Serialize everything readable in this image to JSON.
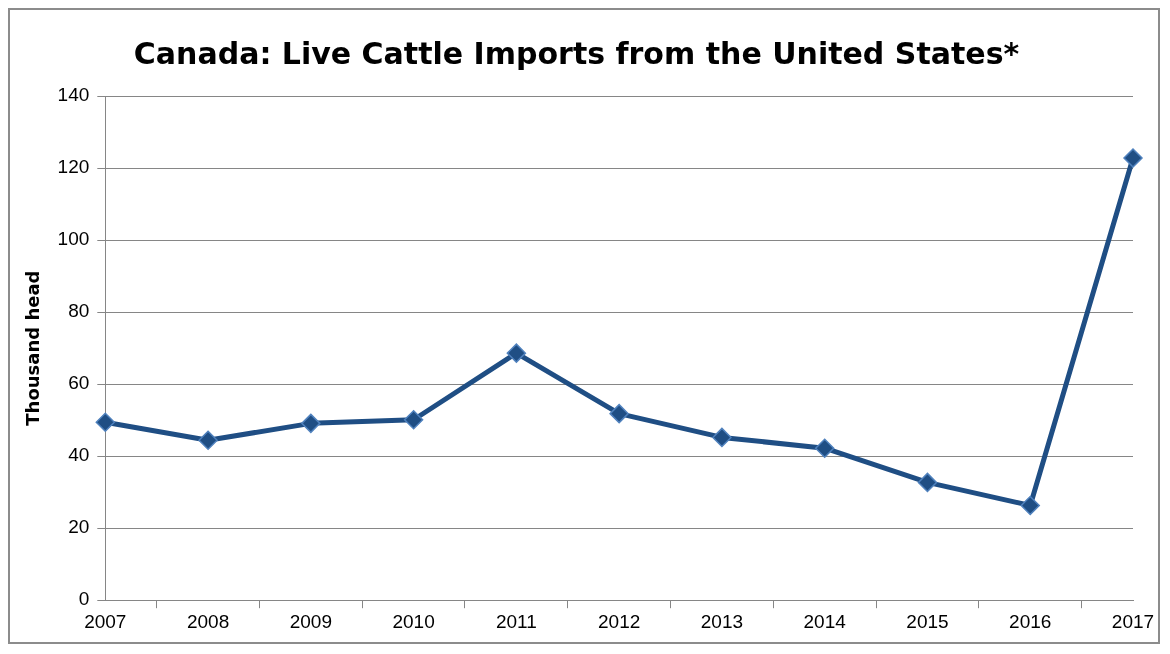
{
  "chart_data": {
    "type": "line",
    "title": "Canada: Live Cattle Imports from the United States*",
    "ylabel": "Thousand head",
    "categories": [
      "2007",
      "2008",
      "2009",
      "2010",
      "2011",
      "2012",
      "2013",
      "2014",
      "2015",
      "2016",
      "2017"
    ],
    "series": [
      {
        "color": "#1f4e84",
        "values": [
          49.4,
          44.4,
          49.1,
          50.1,
          68.6,
          51.8,
          45.2,
          42.2,
          32.7,
          26.3,
          122.8
        ]
      }
    ],
    "ylim": [
      0,
      140
    ],
    "yticks": [
      0,
      20,
      40,
      60,
      80,
      100,
      120,
      140
    ],
    "grid": "y",
    "marker": "diamond",
    "line_style": "solid",
    "legend": false
  }
}
